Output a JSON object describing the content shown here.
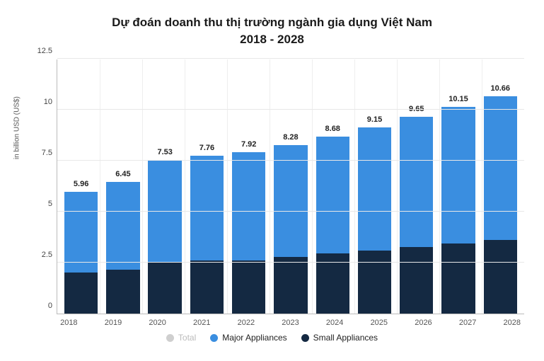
{
  "chart": {
    "type": "stacked-bar",
    "title_line1": "Dự đoán doanh thu thị trường ngành gia dụng Việt Nam",
    "title_line2": "2018 - 2028",
    "y_label": "in billion USD (US$)",
    "ymin": 0,
    "ymax": 12.5,
    "ytick_step": 2.5,
    "yticks": [
      0,
      2.5,
      5,
      7.5,
      10,
      12.5
    ],
    "categories": [
      "2018",
      "2019",
      "2020",
      "2021",
      "2022",
      "2023",
      "2024",
      "2025",
      "2026",
      "2027",
      "2028"
    ],
    "totals": [
      5.96,
      6.45,
      7.53,
      7.76,
      7.92,
      8.28,
      8.68,
      9.15,
      9.65,
      10.15,
      10.66
    ],
    "series": [
      {
        "name": "Small Appliances",
        "color": "#142942",
        "values": [
          2.0,
          2.15,
          2.55,
          2.62,
          2.6,
          2.78,
          2.95,
          3.1,
          3.28,
          3.45,
          3.6
        ]
      },
      {
        "name": "Major Appliances",
        "color": "#3a8ee0",
        "values": [
          3.96,
          4.3,
          4.98,
          5.14,
          5.32,
          5.5,
          5.73,
          6.05,
          6.37,
          6.7,
          7.06
        ]
      }
    ],
    "legend": [
      {
        "name": "Total",
        "color": "#cfcfcf",
        "muted": true
      },
      {
        "name": "Major Appliances",
        "color": "#3a8ee0",
        "muted": false
      },
      {
        "name": "Small Appliances",
        "color": "#142942",
        "muted": false
      }
    ],
    "background_color": "#ffffff",
    "grid_color": "#e8e8e8",
    "axis_color": "#bbbbbb",
    "title_fontsize": 17,
    "label_fontsize": 11,
    "bar_width_pct": 80
  }
}
